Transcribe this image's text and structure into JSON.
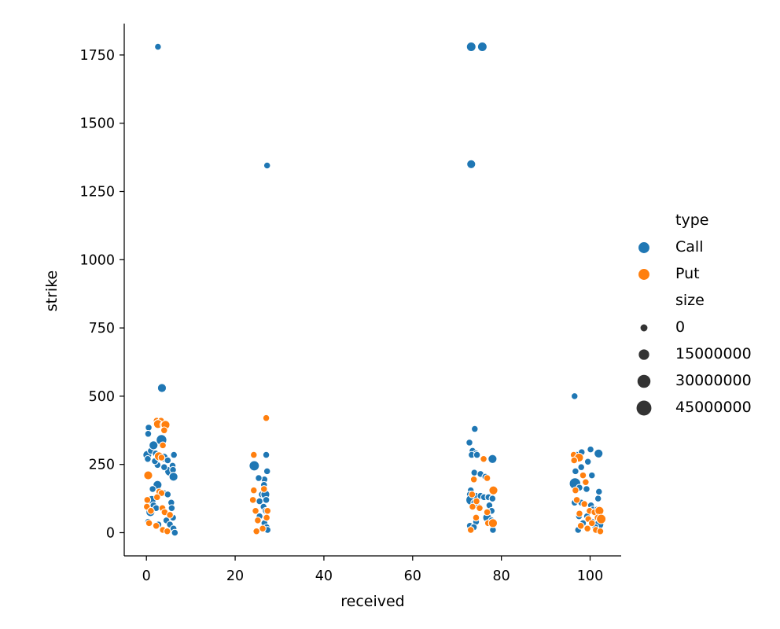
{
  "chart_data": {
    "type": "scatter",
    "title": "",
    "xlabel": "received",
    "ylabel": "strike",
    "xlim": [
      -5,
      107
    ],
    "ylim": [
      -85,
      1865
    ],
    "xticks": [
      0,
      20,
      40,
      60,
      80,
      100
    ],
    "yticks": [
      0,
      250,
      500,
      750,
      1000,
      1250,
      1500,
      1750
    ],
    "grid": false,
    "legend_position": "right",
    "hue": {
      "title": "type",
      "entries": [
        {
          "name": "Call",
          "color": "#1f77b4"
        },
        {
          "name": "Put",
          "color": "#ff7f0e"
        }
      ]
    },
    "size_legend": {
      "title": "size",
      "entries": [
        {
          "label": "0",
          "value": 0
        },
        {
          "label": "15000000",
          "value": 15000000
        },
        {
          "label": "30000000",
          "value": 30000000
        },
        {
          "label": "45000000",
          "value": 45000000
        }
      ]
    },
    "series": [
      {
        "name": "Call",
        "color": "#1f77b4",
        "points": [
          [
            2.6,
            1780,
            0
          ],
          [
            73.2,
            1780,
            5000000
          ],
          [
            75.7,
            1780,
            5000000
          ],
          [
            27.2,
            1345,
            0
          ],
          [
            73.2,
            1350,
            3000000
          ],
          [
            3.5,
            530,
            3000000
          ],
          [
            96.5,
            500,
            0
          ],
          [
            0.5,
            385,
            0
          ],
          [
            0.4,
            362,
            0
          ],
          [
            0.2,
            285,
            3000000
          ],
          [
            0.3,
            270,
            0
          ],
          [
            1.0,
            300,
            0
          ],
          [
            1.6,
            320,
            3000000
          ],
          [
            2.1,
            290,
            0
          ],
          [
            3.4,
            340,
            10000000
          ],
          [
            3.9,
            275,
            3000000
          ],
          [
            4.8,
            265,
            0
          ],
          [
            5.2,
            225,
            5000000
          ],
          [
            5.9,
            245,
            0
          ],
          [
            6.2,
            285,
            0
          ],
          [
            6.0,
            230,
            0
          ],
          [
            6.1,
            205,
            3000000
          ],
          [
            2.5,
            248,
            0
          ],
          [
            1.9,
            262,
            0
          ],
          [
            4.0,
            240,
            0
          ],
          [
            2.5,
            175,
            3000000
          ],
          [
            1.4,
            160,
            0
          ],
          [
            1.2,
            120,
            3000000
          ],
          [
            1.6,
            100,
            0
          ],
          [
            3.9,
            145,
            0
          ],
          [
            4.8,
            140,
            0
          ],
          [
            5.6,
            110,
            0
          ],
          [
            0.9,
            75,
            3000000
          ],
          [
            2.2,
            90,
            0
          ],
          [
            5.7,
            90,
            0
          ],
          [
            6.0,
            55,
            0
          ],
          [
            0.4,
            40,
            0
          ],
          [
            4.5,
            45,
            0
          ],
          [
            5.3,
            30,
            0
          ],
          [
            6.1,
            15,
            0
          ],
          [
            6.4,
            0,
            0
          ],
          [
            2.7,
            30,
            0
          ],
          [
            27.0,
            285,
            0
          ],
          [
            27.2,
            225,
            0
          ],
          [
            26.6,
            195,
            0
          ],
          [
            25.3,
            200,
            0
          ],
          [
            24.3,
            245,
            8000000
          ],
          [
            26.5,
            175,
            0
          ],
          [
            26.0,
            140,
            0
          ],
          [
            26.8,
            140,
            3000000
          ],
          [
            25.5,
            115,
            0
          ],
          [
            27.0,
            120,
            0
          ],
          [
            26.4,
            95,
            0
          ],
          [
            26.9,
            80,
            0
          ],
          [
            25.5,
            60,
            0
          ],
          [
            26.6,
            35,
            0
          ],
          [
            27.1,
            20,
            0
          ],
          [
            27.3,
            10,
            0
          ],
          [
            74.0,
            380,
            0
          ],
          [
            72.8,
            330,
            0
          ],
          [
            73.5,
            300,
            0
          ],
          [
            74.3,
            290,
            0
          ],
          [
            73.3,
            285,
            0
          ],
          [
            74.5,
            285,
            0
          ],
          [
            78.0,
            270,
            3000000
          ],
          [
            73.9,
            220,
            0
          ],
          [
            75.3,
            215,
            0
          ],
          [
            76.4,
            205,
            0
          ],
          [
            73.1,
            155,
            0
          ],
          [
            72.9,
            140,
            0
          ],
          [
            73.2,
            120,
            10000000
          ],
          [
            73.9,
            110,
            0
          ],
          [
            74.2,
            135,
            0
          ],
          [
            75.3,
            135,
            0
          ],
          [
            76.1,
            130,
            0
          ],
          [
            77.1,
            130,
            0
          ],
          [
            78.0,
            125,
            0
          ],
          [
            74.5,
            100,
            0
          ],
          [
            77.3,
            100,
            0
          ],
          [
            77.8,
            80,
            0
          ],
          [
            76.8,
            55,
            3000000
          ],
          [
            77.8,
            45,
            0
          ],
          [
            74.3,
            40,
            0
          ],
          [
            72.9,
            25,
            0
          ],
          [
            73.8,
            20,
            0
          ],
          [
            78.1,
            10,
            0
          ],
          [
            100.1,
            305,
            0
          ],
          [
            101.9,
            290,
            3000000
          ],
          [
            97.0,
            285,
            0
          ],
          [
            98.1,
            295,
            0
          ],
          [
            99.5,
            260,
            0
          ],
          [
            96.7,
            225,
            0
          ],
          [
            98.0,
            240,
            0
          ],
          [
            100.4,
            210,
            0
          ],
          [
            96.6,
            180,
            15000000
          ],
          [
            97.6,
            165,
            0
          ],
          [
            99.2,
            160,
            0
          ],
          [
            102.0,
            150,
            0
          ],
          [
            101.8,
            125,
            0
          ],
          [
            100.2,
            100,
            0
          ],
          [
            96.5,
            110,
            0
          ],
          [
            98.0,
            110,
            0
          ],
          [
            100.6,
            85,
            0
          ],
          [
            101.6,
            85,
            0
          ],
          [
            99.3,
            60,
            0
          ],
          [
            102.2,
            60,
            0
          ],
          [
            97.5,
            60,
            0
          ],
          [
            100.5,
            40,
            0
          ],
          [
            102.0,
            30,
            5000000
          ],
          [
            98.4,
            35,
            0
          ],
          [
            101.2,
            20,
            0
          ],
          [
            97.3,
            10,
            0
          ]
        ]
      },
      {
        "name": "Put",
        "color": "#ff7f0e",
        "points": [
          [
            27.0,
            420,
            0
          ],
          [
            2.3,
            410,
            0
          ],
          [
            3.3,
            410,
            0
          ],
          [
            2.6,
            398,
            3000000
          ],
          [
            3.8,
            395,
            0
          ],
          [
            4.3,
            395,
            3000000
          ],
          [
            4.0,
            375,
            0
          ],
          [
            3.7,
            320,
            0
          ],
          [
            2.8,
            280,
            3000000
          ],
          [
            3.4,
            275,
            0
          ],
          [
            0.4,
            210,
            3000000
          ],
          [
            2.9,
            150,
            0
          ],
          [
            3.4,
            145,
            0
          ],
          [
            2.4,
            130,
            0
          ],
          [
            0.2,
            120,
            0
          ],
          [
            0.1,
            95,
            0
          ],
          [
            1.0,
            80,
            0
          ],
          [
            3.6,
            90,
            0
          ],
          [
            4.1,
            75,
            0
          ],
          [
            5.3,
            65,
            0
          ],
          [
            0.6,
            35,
            0
          ],
          [
            2.2,
            25,
            0
          ],
          [
            3.7,
            10,
            0
          ],
          [
            4.7,
            5,
            0
          ],
          [
            24.2,
            285,
            0
          ],
          [
            24.2,
            155,
            0
          ],
          [
            24.0,
            120,
            0
          ],
          [
            26.5,
            160,
            0
          ],
          [
            24.6,
            80,
            0
          ],
          [
            27.3,
            80,
            0
          ],
          [
            25.1,
            45,
            0
          ],
          [
            27.1,
            55,
            0
          ],
          [
            26.2,
            15,
            0
          ],
          [
            24.8,
            5,
            0
          ],
          [
            76.0,
            270,
            0
          ],
          [
            73.8,
            195,
            0
          ],
          [
            76.8,
            200,
            0
          ],
          [
            78.2,
            155,
            3000000
          ],
          [
            73.4,
            140,
            0
          ],
          [
            74.4,
            115,
            0
          ],
          [
            73.5,
            95,
            0
          ],
          [
            75.1,
            90,
            0
          ],
          [
            76.8,
            75,
            0
          ],
          [
            74.3,
            55,
            0
          ],
          [
            77.0,
            35,
            0
          ],
          [
            78.1,
            35,
            3000000
          ],
          [
            73.1,
            10,
            0
          ],
          [
            96.3,
            285,
            0
          ],
          [
            97.5,
            275,
            3000000
          ],
          [
            96.4,
            265,
            0
          ],
          [
            98.4,
            210,
            0
          ],
          [
            99.0,
            185,
            0
          ],
          [
            96.7,
            155,
            0
          ],
          [
            97.0,
            120,
            0
          ],
          [
            98.7,
            105,
            0
          ],
          [
            99.9,
            80,
            0
          ],
          [
            101.0,
            75,
            0
          ],
          [
            102.1,
            80,
            3000000
          ],
          [
            97.6,
            70,
            0
          ],
          [
            99.6,
            50,
            0
          ],
          [
            101.7,
            55,
            0
          ],
          [
            102.5,
            50,
            5000000
          ],
          [
            100.4,
            35,
            0
          ],
          [
            97.9,
            25,
            0
          ],
          [
            99.4,
            15,
            0
          ],
          [
            101.3,
            10,
            0
          ],
          [
            102.3,
            5,
            0
          ]
        ]
      }
    ]
  }
}
